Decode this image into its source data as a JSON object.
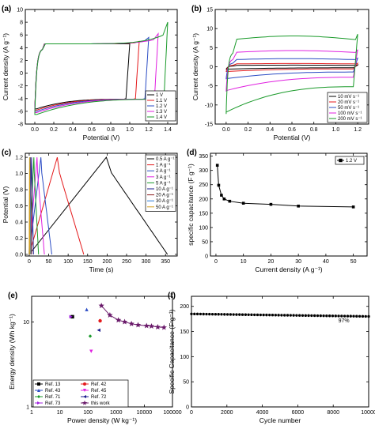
{
  "chart_data": [
    {
      "id": "a",
      "type": "line",
      "panel_label": "(a)",
      "xlabel": "Potential (V)",
      "ylabel": "Current density (A g⁻¹)",
      "xlim": [
        -0.1,
        1.5
      ],
      "ylim": [
        -8,
        10
      ],
      "xticks": [
        0.0,
        0.2,
        0.4,
        0.6,
        0.8,
        1.0,
        1.2,
        1.4
      ],
      "xtick_labels": [
        "0.0",
        "0.2",
        "0.4",
        "0.6",
        "0.8",
        "1.0",
        "1.2",
        "1.4"
      ],
      "yticks": [
        -8,
        -6,
        -4,
        -2,
        0,
        2,
        4,
        6,
        8,
        10
      ],
      "ytick_labels": [
        "-8",
        "-6",
        "-4",
        "-2",
        "0",
        "2",
        "4",
        "6",
        "8",
        "10"
      ],
      "legend_position": "bottom-right",
      "series": [
        {
          "name": "1 V",
          "color": "#000000",
          "vmax": 1.0,
          "peak": 4.6,
          "low": -5.6
        },
        {
          "name": "1.1 V",
          "color": "#e41a1c",
          "vmax": 1.1,
          "peak": 5.0,
          "low": -5.8
        },
        {
          "name": "1.2 V",
          "color": "#2b4cc4",
          "vmax": 1.2,
          "peak": 5.6,
          "low": -6.0
        },
        {
          "name": "1.3 V",
          "color": "#e020e0",
          "vmax": 1.3,
          "peak": 6.2,
          "low": -6.2
        },
        {
          "name": "1.4 V",
          "color": "#1a9a2a",
          "vmax": 1.4,
          "peak": 8.0,
          "low": -6.5
        }
      ]
    },
    {
      "id": "b",
      "type": "line",
      "panel_label": "(b)",
      "xlabel": "Potential (V)",
      "ylabel": "Current density (A g⁻¹)",
      "xlim": [
        -0.1,
        1.3
      ],
      "ylim": [
        -15,
        15
      ],
      "xticks": [
        0.0,
        0.2,
        0.4,
        0.6,
        0.8,
        1.0,
        1.2
      ],
      "xtick_labels": [
        "0.0",
        "0.2",
        "0.4",
        "0.6",
        "0.8",
        "1.0",
        "1.2"
      ],
      "yticks": [
        -15,
        -10,
        -5,
        0,
        5,
        10,
        15
      ],
      "ytick_labels": [
        "-15",
        "-10",
        "-5",
        "0",
        "5",
        "10",
        "15"
      ],
      "legend_position": "bottom-right",
      "series": [
        {
          "name": "10 mV s⁻¹",
          "color": "#000000",
          "half": 0.5
        },
        {
          "name": "20 mV s⁻¹",
          "color": "#e41a1c",
          "half": 1.0
        },
        {
          "name": "50 mV s⁻¹",
          "color": "#2b4cc4",
          "half": 2.5
        },
        {
          "name": "100 mV s⁻¹",
          "color": "#e020e0",
          "half": 5.0
        },
        {
          "name": "200 mV s⁻¹",
          "color": "#1a9a2a",
          "half": 9.5
        }
      ]
    },
    {
      "id": "c",
      "type": "line",
      "panel_label": "(c)",
      "xlabel": "Time (s)",
      "ylabel": "Potential (V)",
      "xlim": [
        -10,
        380
      ],
      "ylim": [
        -0.02,
        1.25
      ],
      "xticks": [
        0,
        50,
        100,
        150,
        200,
        250,
        300,
        350
      ],
      "xtick_labels": [
        "0",
        "50",
        "100",
        "150",
        "200",
        "250",
        "300",
        "350"
      ],
      "yticks": [
        0.0,
        0.2,
        0.4,
        0.6,
        0.8,
        1.0,
        1.2
      ],
      "ytick_labels": [
        "0.0",
        "0.2",
        "0.4",
        "0.6",
        "0.8",
        "1.0",
        "1.2"
      ],
      "legend_position": "top-right",
      "series": [
        {
          "name": "0.5 A g⁻¹",
          "color": "#000000",
          "t_peak": 198,
          "t_end": 355
        },
        {
          "name": "1 A g⁻¹",
          "color": "#e41a1c",
          "t_peak": 72,
          "t_end": 140
        },
        {
          "name": "2 A g⁻¹",
          "color": "#2b4cc4",
          "t_peak": 30,
          "t_end": 58
        },
        {
          "name": "3 A g⁻¹",
          "color": "#e020e0",
          "t_peak": 20,
          "t_end": 39
        },
        {
          "name": "5 A g⁻¹",
          "color": "#1a9a2a",
          "t_peak": 12,
          "t_end": 24
        },
        {
          "name": "10 A g⁻¹",
          "color": "#1a1a8c",
          "t_peak": 6,
          "t_end": 11
        },
        {
          "name": "20 A g⁻¹",
          "color": "#8b1a1a",
          "t_peak": 3,
          "t_end": 6
        },
        {
          "name": "30 A g⁻¹",
          "color": "#2a7ad4",
          "t_peak": 2,
          "t_end": 4
        },
        {
          "name": "50 A g⁻¹",
          "color": "#d4a020",
          "t_peak": 1,
          "t_end": 2.2
        }
      ]
    },
    {
      "id": "d",
      "type": "line",
      "panel_label": "(d)",
      "xlabel": "Current density (A g⁻¹)",
      "ylabel": "specific capacitance (F g⁻¹)",
      "xlim": [
        -2,
        55
      ],
      "ylim": [
        0,
        360
      ],
      "xticks": [
        0,
        10,
        20,
        30,
        40,
        50
      ],
      "xtick_labels": [
        "0",
        "10",
        "20",
        "30",
        "40",
        "50"
      ],
      "yticks": [
        0,
        50,
        100,
        150,
        200,
        250,
        300,
        350
      ],
      "ytick_labels": [
        "0",
        "50",
        "100",
        "150",
        "200",
        "250",
        "300",
        "350"
      ],
      "legend_position": "top-right",
      "series": [
        {
          "name": "1.2 V",
          "color": "#000000",
          "x": [
            0.5,
            1,
            2,
            3,
            5,
            10,
            20,
            30,
            50
          ],
          "y": [
            318,
            248,
            213,
            200,
            192,
            185,
            181,
            175,
            172
          ]
        }
      ]
    },
    {
      "id": "e",
      "type": "scatter",
      "panel_label": "(e)",
      "xlabel": "Power density (W kg⁻¹)",
      "ylabel": "Energy density (Wh kg⁻¹)",
      "x_scale": "log",
      "y_scale": "log",
      "xlim": [
        1,
        100000
      ],
      "ylim": [
        1,
        20
      ],
      "xticks": [
        1,
        10,
        100,
        1000,
        10000,
        100000
      ],
      "xtick_labels": [
        "1",
        "10",
        "100",
        "1000",
        "10000",
        "100000"
      ],
      "yticks": [
        1,
        10
      ],
      "ytick_labels": [
        "1",
        "10"
      ],
      "legend_position": "bottom-left",
      "series": [
        {
          "name": "Ref. 13",
          "color": "#000000",
          "marker": "square",
          "x": [
            28
          ],
          "y": [
            11.5
          ]
        },
        {
          "name": "Ref. 42",
          "color": "#e41a1c",
          "marker": "circle",
          "x": [
            270
          ],
          "y": [
            10.3
          ]
        },
        {
          "name": "Ref. 43",
          "color": "#2b4cc4",
          "marker": "triangle-up",
          "x": [
            90
          ],
          "y": [
            14.0
          ]
        },
        {
          "name": "Ref. 45",
          "color": "#e020e0",
          "marker": "triangle-down",
          "x": [
            130
          ],
          "y": [
            4.5
          ]
        },
        {
          "name": "Ref. 71",
          "color": "#1a9a2a",
          "marker": "diamond",
          "x": [
            120
          ],
          "y": [
            6.8
          ]
        },
        {
          "name": "Ref. 72",
          "color": "#1a1a8c",
          "marker": "triangle-left",
          "x": [
            240
          ],
          "y": [
            8.0
          ]
        },
        {
          "name": "Ref. 73",
          "color": "#a020e0",
          "marker": "triangle-right",
          "x": [
            25
          ],
          "y": [
            11.5
          ]
        },
        {
          "name": "this work",
          "color": "#6a1a6a",
          "marker": "star",
          "x": [
            300,
            600,
            1200,
            2000,
            3500,
            6000,
            12000,
            18000,
            30000,
            50000
          ],
          "y": [
            15.5,
            12.0,
            10.5,
            10.0,
            9.5,
            9.2,
            9.0,
            8.9,
            8.7,
            8.6
          ]
        }
      ]
    },
    {
      "id": "f",
      "type": "scatter",
      "panel_label": "(f)",
      "xlabel": "Cycle number",
      "ylabel": "Specific Capacitance (F g⁻¹)",
      "xlim": [
        0,
        10000
      ],
      "ylim": [
        0,
        220
      ],
      "xticks": [
        0,
        2000,
        4000,
        6000,
        8000,
        10000
      ],
      "xtick_labels": [
        "0",
        "2000",
        "4000",
        "6000",
        "8000",
        "10000"
      ],
      "yticks": [
        0,
        50,
        100,
        150,
        200
      ],
      "ytick_labels": [
        "0",
        "50",
        "100",
        "150",
        "200"
      ],
      "annotation": "97%",
      "series": [
        {
          "name": "",
          "color": "#000000",
          "start": 185,
          "end": 180,
          "points": 60
        }
      ]
    }
  ]
}
